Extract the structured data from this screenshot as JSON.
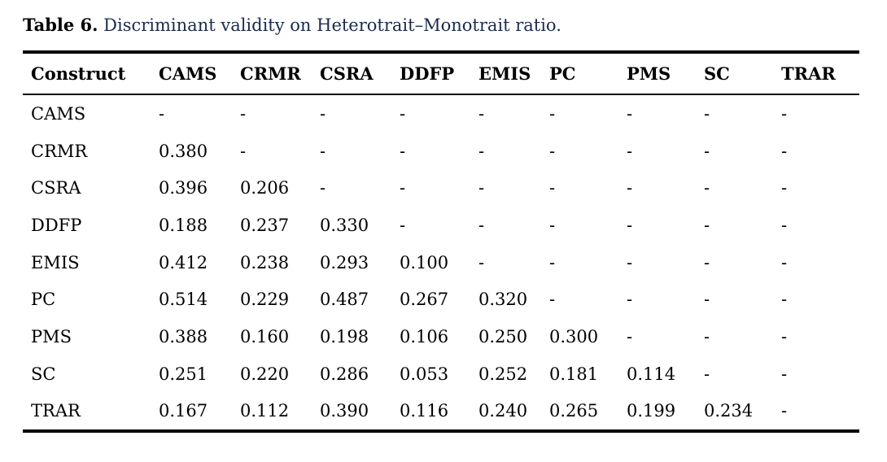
{
  "caption": {
    "label": "Table 6.",
    "text": "Discriminant validity on Heterotrait–Monotrait ratio."
  },
  "table": {
    "columns": [
      "Construct",
      "CAMS",
      "CRMR",
      "CSRA",
      "DDFP",
      "EMIS",
      "PC",
      "PMS",
      "SC",
      "TRAR"
    ],
    "rows": [
      {
        "label": "CAMS",
        "values": [
          "-",
          "-",
          "-",
          "-",
          "-",
          "-",
          "-",
          "-",
          "-"
        ]
      },
      {
        "label": "CRMR",
        "values": [
          "0.380",
          "-",
          "-",
          "-",
          "-",
          "-",
          "-",
          "-",
          "-"
        ]
      },
      {
        "label": "CSRA",
        "values": [
          "0.396",
          "0.206",
          "-",
          "-",
          "-",
          "-",
          "-",
          "-",
          "-"
        ]
      },
      {
        "label": "DDFP",
        "values": [
          "0.188",
          "0.237",
          "0.330",
          "-",
          "-",
          "-",
          "-",
          "-",
          "-"
        ]
      },
      {
        "label": "EMIS",
        "values": [
          "0.412",
          "0.238",
          "0.293",
          "0.100",
          "-",
          "-",
          "-",
          "-",
          "-"
        ]
      },
      {
        "label": "PC",
        "values": [
          "0.514",
          "0.229",
          "0.487",
          "0.267",
          "0.320",
          "-",
          "-",
          "-",
          "-"
        ]
      },
      {
        "label": "PMS",
        "values": [
          "0.388",
          "0.160",
          "0.198",
          "0.106",
          "0.250",
          "0.300",
          "-",
          "-",
          "-"
        ]
      },
      {
        "label": "SC",
        "values": [
          "0.251",
          "0.220",
          "0.286",
          "0.053",
          "0.252",
          "0.181",
          "0.114",
          "-",
          "-"
        ]
      },
      {
        "label": "TRAR",
        "values": [
          "0.167",
          "0.112",
          "0.390",
          "0.116",
          "0.240",
          "0.265",
          "0.199",
          "0.234",
          "-"
        ]
      }
    ]
  },
  "colors": {
    "background": "#ffffff",
    "caption_text": "#1b2b4c",
    "caption_label": "#000000",
    "table_text": "#000000",
    "rule": "#000000"
  }
}
